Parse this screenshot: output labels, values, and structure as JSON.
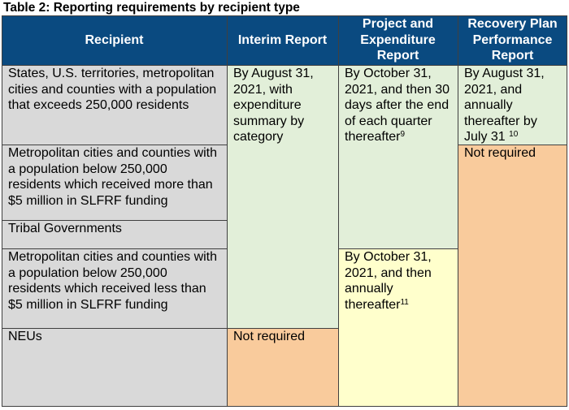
{
  "caption": "Table 2: Reporting requirements by recipient type",
  "headers": {
    "recipient": "Recipient",
    "interim": "Interim Report",
    "project_expenditure": "Project and Expenditure Report",
    "recovery_plan": "Recovery Plan Performance Report"
  },
  "recipients": [
    "States, U.S. territories, metropolitan cities and counties with a population that exceeds 250,000 residents",
    "Metropolitan cities and counties with a population below 250,000 residents which received more than $5 million in SLFRF funding",
    "Tribal Governments",
    "Metropolitan cities and counties with a population below 250,000 residents which received less than $5 million in SLFRF funding",
    "NEUs"
  ],
  "interim": {
    "required": "By August 31, 2021, with expenditure summary by category",
    "not_required": "Not required"
  },
  "project_expenditure": {
    "quarterly": "By October 31, 2021, and then 30 days after the end of each quarter thereafter",
    "quarterly_note": "9",
    "annual": "By October 31, 2021, and then annually thereafter",
    "annual_note": "11"
  },
  "recovery_plan": {
    "required": "By August 31, 2021, and annually thereafter by July 31",
    "required_note": "10",
    "not_required": "Not required"
  },
  "colors": {
    "header": "#0a4a80",
    "recipient_bg": "#d9d9d9",
    "required_bg": "#e2efd9",
    "annual_bg": "#ffffcc",
    "not_required_bg": "#f9cb9c"
  }
}
